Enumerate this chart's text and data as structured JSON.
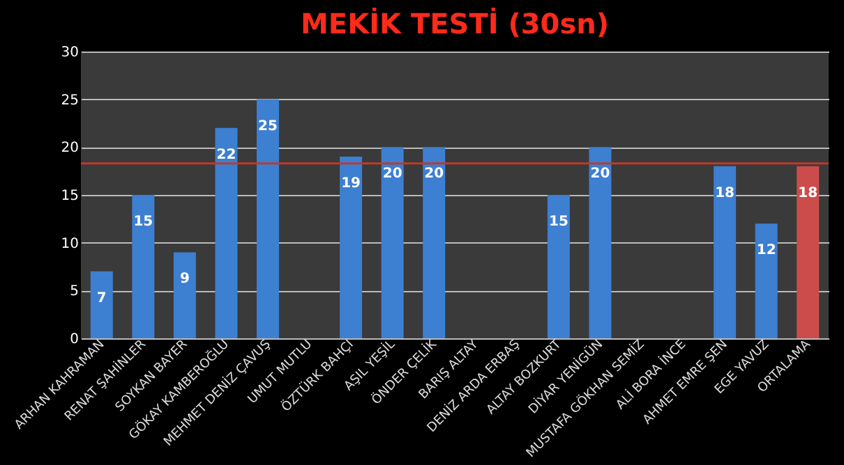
{
  "chart_data": {
    "type": "bar",
    "title": "MEKİK TESTİ (30sn)",
    "categories": [
      "ARHAN KAHRAMAN",
      "RENAT ŞAHİNLER",
      "SOYKAN BAYER",
      "GÖKAY KAMBEROĞLU",
      "MEHMET DENİZ ÇAVUŞ",
      "UMUT MUTLU",
      "ÖZTÜRK BAHÇI",
      "AŞIL YEŞİL",
      "ÖNDER ÇELİK",
      "BARIŞ ALTAY",
      "DENİZ ARDA ERBAŞ",
      "ALTAY BOZKURT",
      "DİYAR YENİGÜN",
      "MUSTAFA GÖKHAN SEMİZ",
      "ALİ BORA İNCE",
      "AHMET EMRE ŞEN",
      "EGE YAVUZ",
      "ORTALAMA"
    ],
    "values": [
      7,
      15,
      9,
      22,
      25,
      null,
      19,
      20,
      20,
      null,
      null,
      15,
      20,
      null,
      null,
      18,
      12,
      18
    ],
    "colors": [
      "#3d7fd1",
      "#3d7fd1",
      "#3d7fd1",
      "#3d7fd1",
      "#3d7fd1",
      "#3d7fd1",
      "#3d7fd1",
      "#3d7fd1",
      "#3d7fd1",
      "#3d7fd1",
      "#3d7fd1",
      "#3d7fd1",
      "#3d7fd1",
      "#3d7fd1",
      "#3d7fd1",
      "#3d7fd1",
      "#3d7fd1",
      "#cc4c4c"
    ],
    "ylim": [
      0,
      30
    ],
    "yticks": [
      0,
      5,
      10,
      15,
      20,
      25,
      30
    ],
    "grid": "y",
    "data_labels": true,
    "ref_lines": [
      {
        "axis": "y",
        "value": 18.3,
        "color": "#c0392b"
      }
    ]
  }
}
